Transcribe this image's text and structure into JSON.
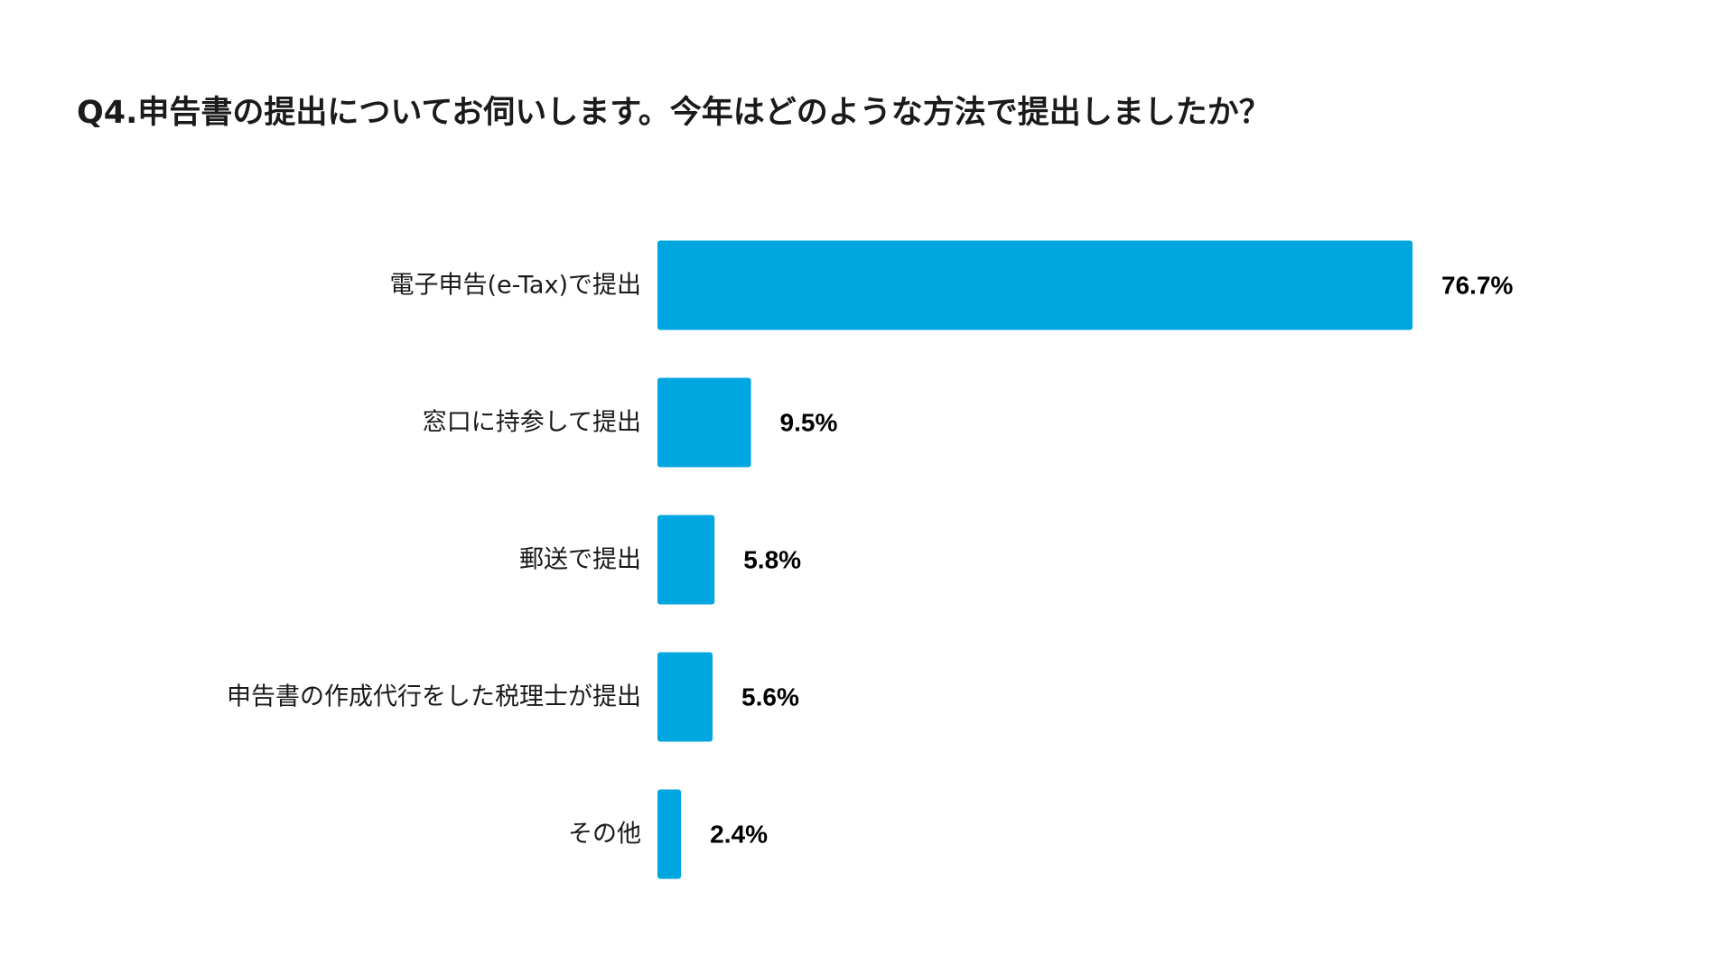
{
  "chart_data": {
    "type": "bar",
    "orientation": "horizontal",
    "title": "Q4.申告書の提出についてお伺いします。今年はどのような方法で提出しましたか？",
    "categories": [
      "電子申告(e-Tax)で提出",
      "窓口に持参して提出",
      "郵送で提出",
      "申告書の作成代行をした税理士が提出",
      "その他"
    ],
    "values": [
      76.7,
      9.5,
      5.8,
      5.6,
      2.4
    ],
    "value_labels": [
      "76.7%",
      "9.5%",
      "5.8%",
      "5.6%",
      "2.4%"
    ],
    "unit": "%",
    "bar_color": "#00A6E0",
    "grid": false,
    "legend": "none",
    "xlim": [
      0,
      100
    ]
  }
}
